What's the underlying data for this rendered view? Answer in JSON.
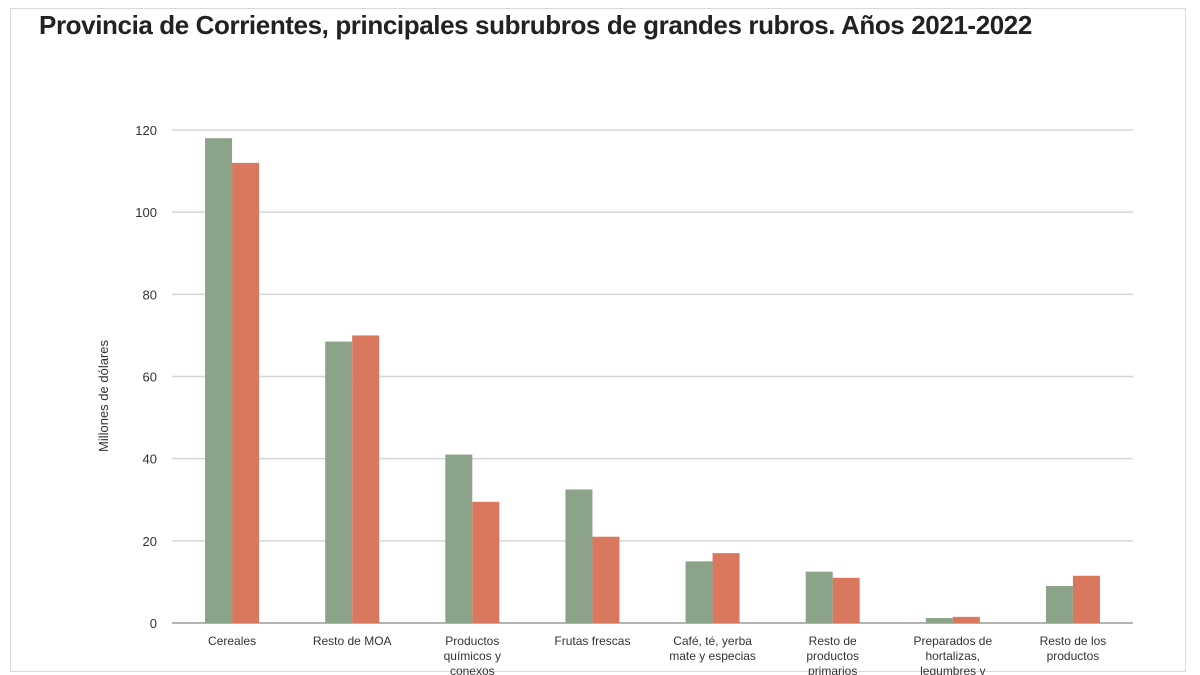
{
  "chart_data": {
    "type": "bar",
    "title": "Provincia de Corrientes, principales subrubros de grandes rubros. Años 2021-2022",
    "xlabel": "",
    "ylabel": "Millones de dólares",
    "ylim": [
      0,
      120
    ],
    "yticks": [
      "0",
      "20",
      "40",
      "60",
      "80",
      "100",
      "120"
    ],
    "grid": true,
    "categories": [
      [
        "Cereales"
      ],
      [
        "Resto de MOA"
      ],
      [
        "Productos",
        "químicos y",
        "conexos"
      ],
      [
        "Frutas frescas"
      ],
      [
        "Café, té, yerba",
        "mate y especias"
      ],
      [
        "Resto de",
        "productos",
        "primarios"
      ],
      [
        "Preparados de",
        "hortalizas,",
        "legumbres y"
      ],
      [
        "Resto de los",
        "productos"
      ]
    ],
    "series": [
      {
        "values": [
          118,
          68.5,
          41,
          32.5,
          15,
          12.5,
          1.2,
          9
        ],
        "color": "#8ba388"
      },
      {
        "values": [
          112,
          70,
          29.5,
          21,
          17,
          11,
          1.5,
          11.5
        ],
        "color": "#d9785f"
      }
    ]
  }
}
